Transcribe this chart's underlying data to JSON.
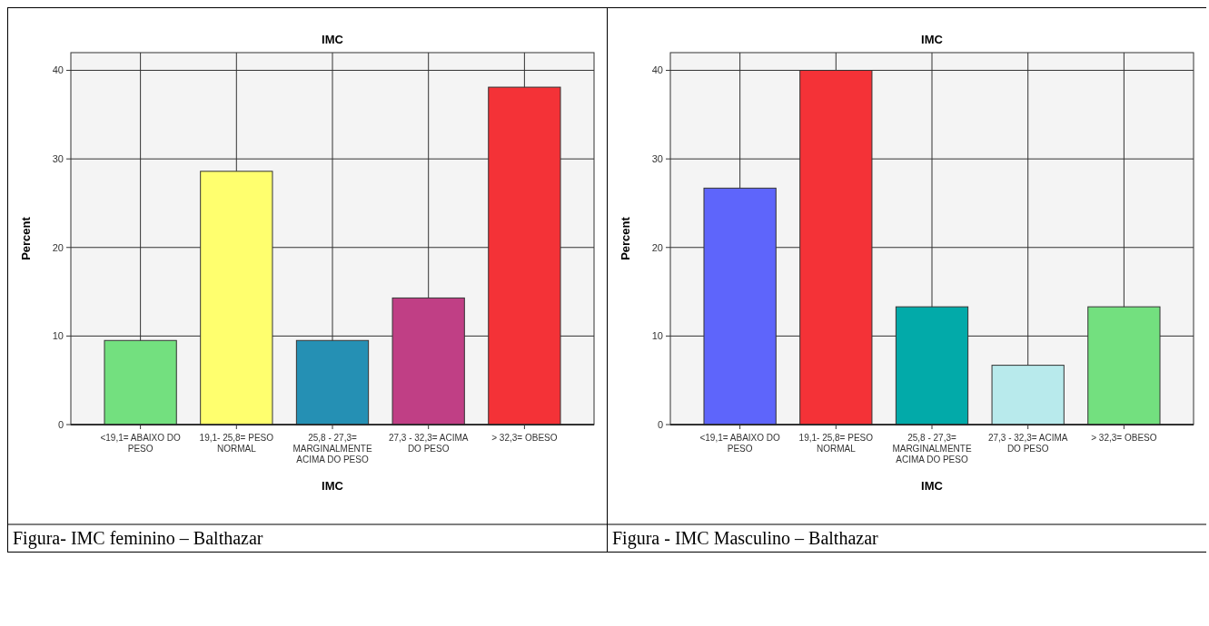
{
  "chart_data": [
    {
      "type": "bar",
      "title": "IMC",
      "xlabel": "IMC",
      "ylabel": "Percent",
      "categories": [
        "<19,1= ABAIXO DO PESO",
        "19,1- 25,8= PESO NORMAL",
        "25,8 - 27,3= MARGINALMENTE ACIMA DO PESO",
        "27,3 - 32,3= ACIMA DO PESO",
        "> 32,3= OBESO"
      ],
      "values": [
        9.5,
        28.6,
        9.5,
        14.3,
        38.1
      ],
      "colors": [
        "#73e07f",
        "#ffff6e",
        "#2590b4",
        "#c03f85",
        "#f43237"
      ],
      "ylim": [
        0,
        42
      ],
      "yticks": [
        0,
        10,
        20,
        30,
        40
      ],
      "grid": true,
      "annotations": [
        "Figura- IMC feminino – Balthazar"
      ]
    },
    {
      "type": "bar",
      "title": "IMC",
      "xlabel": "IMC",
      "ylabel": "Percent",
      "categories": [
        "<19,1= ABAIXO DO PESO",
        "19,1- 25,8= PESO NORMAL",
        "25,8 - 27,3= MARGINALMENTE ACIMA DO PESO",
        "27,3 - 32,3= ACIMA DO PESO",
        "> 32,3= OBESO"
      ],
      "values": [
        26.7,
        40.0,
        13.3,
        6.7,
        13.3
      ],
      "colors": [
        "#5e65fb",
        "#f43237",
        "#02aaa9",
        "#b8eaec",
        "#73e07f"
      ],
      "ylim": [
        0,
        42
      ],
      "yticks": [
        0,
        10,
        20,
        30,
        40
      ],
      "grid": true,
      "annotations": [
        "Figura - IMC Masculino – Balthazar"
      ]
    }
  ]
}
